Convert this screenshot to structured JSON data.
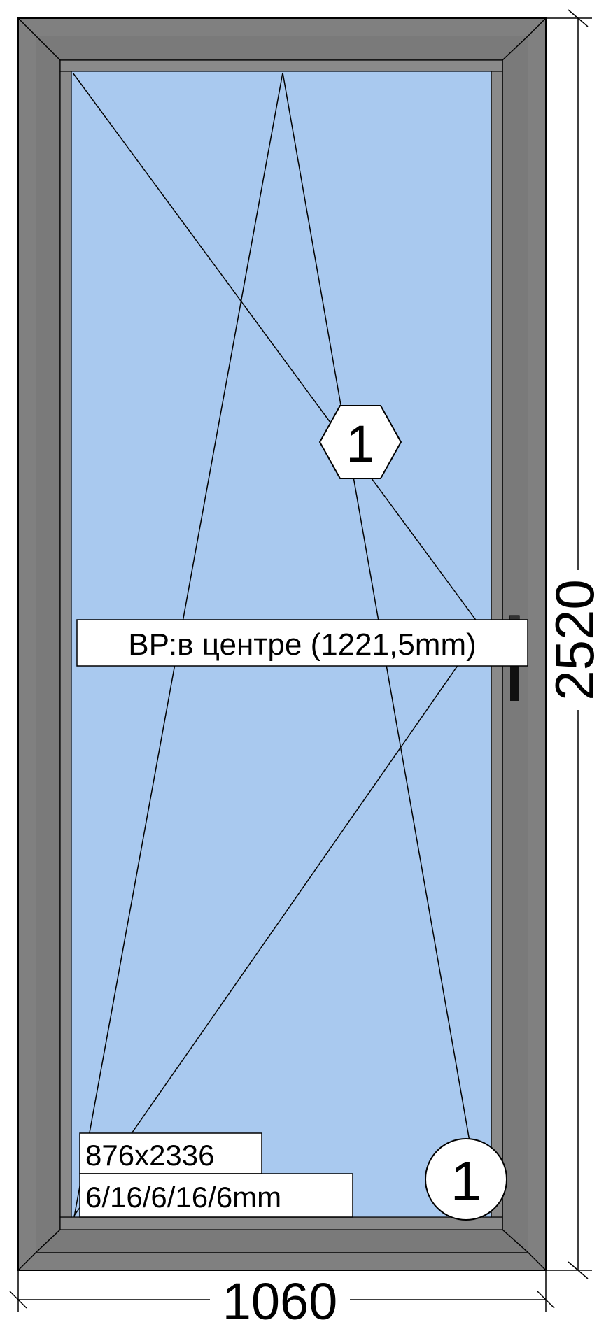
{
  "dimensions": {
    "width": "1060",
    "height": "2520"
  },
  "sash": {
    "marker_number": "1",
    "handle_position_label": "ВР:в центре (1221,5mm)"
  },
  "glass": {
    "size": "876x2336",
    "formula": "6/16/6/16/6mm",
    "marker_number": "1"
  },
  "colors": {
    "frame": "#808080",
    "frame_dark": "#5f5f5f",
    "glass": "#a9c9ef",
    "lines": "#000000",
    "background": "#ffffff"
  }
}
